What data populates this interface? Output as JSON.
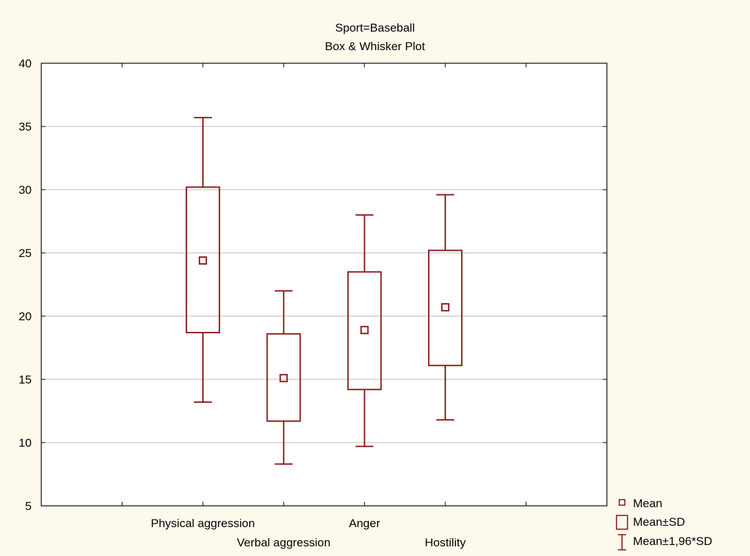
{
  "chart_data": {
    "type": "box",
    "title": "Sport=Baseball",
    "subtitle": "Box & Whisker Plot",
    "xlabel": "",
    "ylabel": "",
    "ylim": [
      5,
      40
    ],
    "yticks": [
      5,
      10,
      15,
      20,
      25,
      30,
      35,
      40
    ],
    "grid": true,
    "categories": [
      "Physical aggression",
      "Verbal aggression",
      "Anger",
      "Hostility"
    ],
    "series": [
      {
        "category": "Physical aggression",
        "mean": 24.4,
        "box_low": 18.7,
        "box_high": 30.2,
        "whisker_low": 13.2,
        "whisker_high": 35.7
      },
      {
        "category": "Verbal aggression",
        "mean": 15.1,
        "box_low": 11.7,
        "box_high": 18.6,
        "whisker_low": 8.3,
        "whisker_high": 22.0
      },
      {
        "category": "Anger",
        "mean": 18.9,
        "box_low": 14.2,
        "box_high": 23.5,
        "whisker_low": 9.7,
        "whisker_high": 28.0
      },
      {
        "category": "Hostility",
        "mean": 20.7,
        "box_low": 16.1,
        "box_high": 25.2,
        "whisker_low": 11.8,
        "whisker_high": 29.6
      }
    ],
    "legend": {
      "position": "bottom-right",
      "items": [
        "Mean",
        "Mean±SD",
        "Mean±1,96*SD"
      ]
    },
    "colors": {
      "series": "#8b1a1a",
      "grid": "#c8c8c8",
      "background": "#fdf9ec",
      "plot_background": "#ffffff"
    }
  }
}
